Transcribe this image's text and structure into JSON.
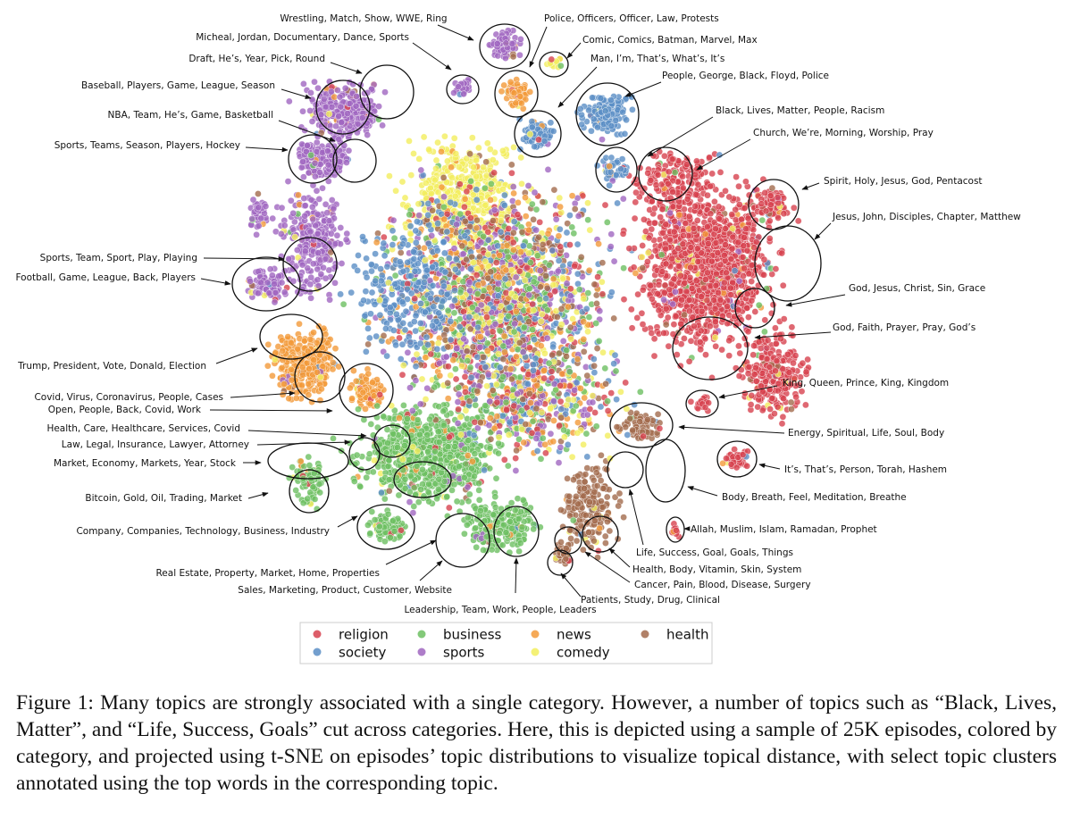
{
  "figure": {
    "annotations": [
      "Wrestling, Match, Show, WWE, Ring",
      "Police, Officers, Officer, Law, Protests",
      "Micheal, Jordan, Documentary, Dance, Sports",
      "Comic, Comics, Batman, Marvel, Max",
      "Draft, He’s, Year, Pick, Round",
      "Man, I’m, That’s, What’s, It’s",
      "Baseball, Players, Game, League, Season",
      "People, George, Black, Floyd, Police",
      "NBA, Team, He’s, Game, Basketball",
      "Black, Lives, Matter, People, Racism",
      "Church, We’re, Morning, Worship, Pray",
      "Sports, Teams, Season, Players, Hockey",
      "Spirit, Holy, Jesus, God, Pentacost",
      "Jesus, John, Disciples, Chapter, Matthew",
      "Sports, Team, Sport, Play, Playing",
      "Football, Game, League, Back, Players",
      "God, Jesus, Christ, Sin, Grace",
      "God, Faith, Prayer, Pray, God’s",
      "Trump, President, Vote, Donald, Election",
      "King, Queen, Prince, King, Kingdom",
      "Covid, Virus, Coronavirus, People, Cases",
      "Open, People, Back, Covid, Work",
      "Energy, Spiritual, Life, Soul, Body",
      "Health, Care, Healthcare, Services, Covid",
      "Law, Legal, Insurance, Lawyer, Attorney",
      "Market, Economy, Markets, Year, Stock",
      "It’s, That’s, Person, Torah, Hashem",
      "Bitcoin, Gold, Oil, Trading, Market",
      "Body, Breath, Feel, Meditation, Breathe",
      "Company, Companies, Technology, Business, Industry",
      "Allah, Muslim, Islam, Ramadan, Prophet",
      "Life, Success, Goal, Goals, Things",
      "Real Estate, Property, Market, Home, Properties",
      "Health, Body, Vitamin, Skin, System",
      "Sales, Marketing, Product, Customer, Website",
      "Cancer, Pain, Blood, Disease, Surgery",
      "Leadership, Team, Work, People, Leaders",
      "Patients, Study, Drug, Clinical"
    ],
    "legend": [
      {
        "name": "religion",
        "color": "#d7424f"
      },
      {
        "name": "society",
        "color": "#5b8ec6"
      },
      {
        "name": "business",
        "color": "#6dbf62"
      },
      {
        "name": "sports",
        "color": "#a066c0"
      },
      {
        "name": "news",
        "color": "#f39a3a"
      },
      {
        "name": "comedy",
        "color": "#f2ee5e"
      },
      {
        "name": "health",
        "color": "#a36b4d"
      }
    ]
  },
  "caption": "Figure 1: Many topics are strongly associated with a single category. However, a number of topics such as “Black, Lives, Matter”, and “Life, Success, Goals” cut across categories. Here, this is depicted using a sample of 25K episodes, colored by category, and projected using t-SNE on episodes’ topic distributions to visualize topical distance, with select topic clusters annotated using the top words in the corresponding topic."
}
